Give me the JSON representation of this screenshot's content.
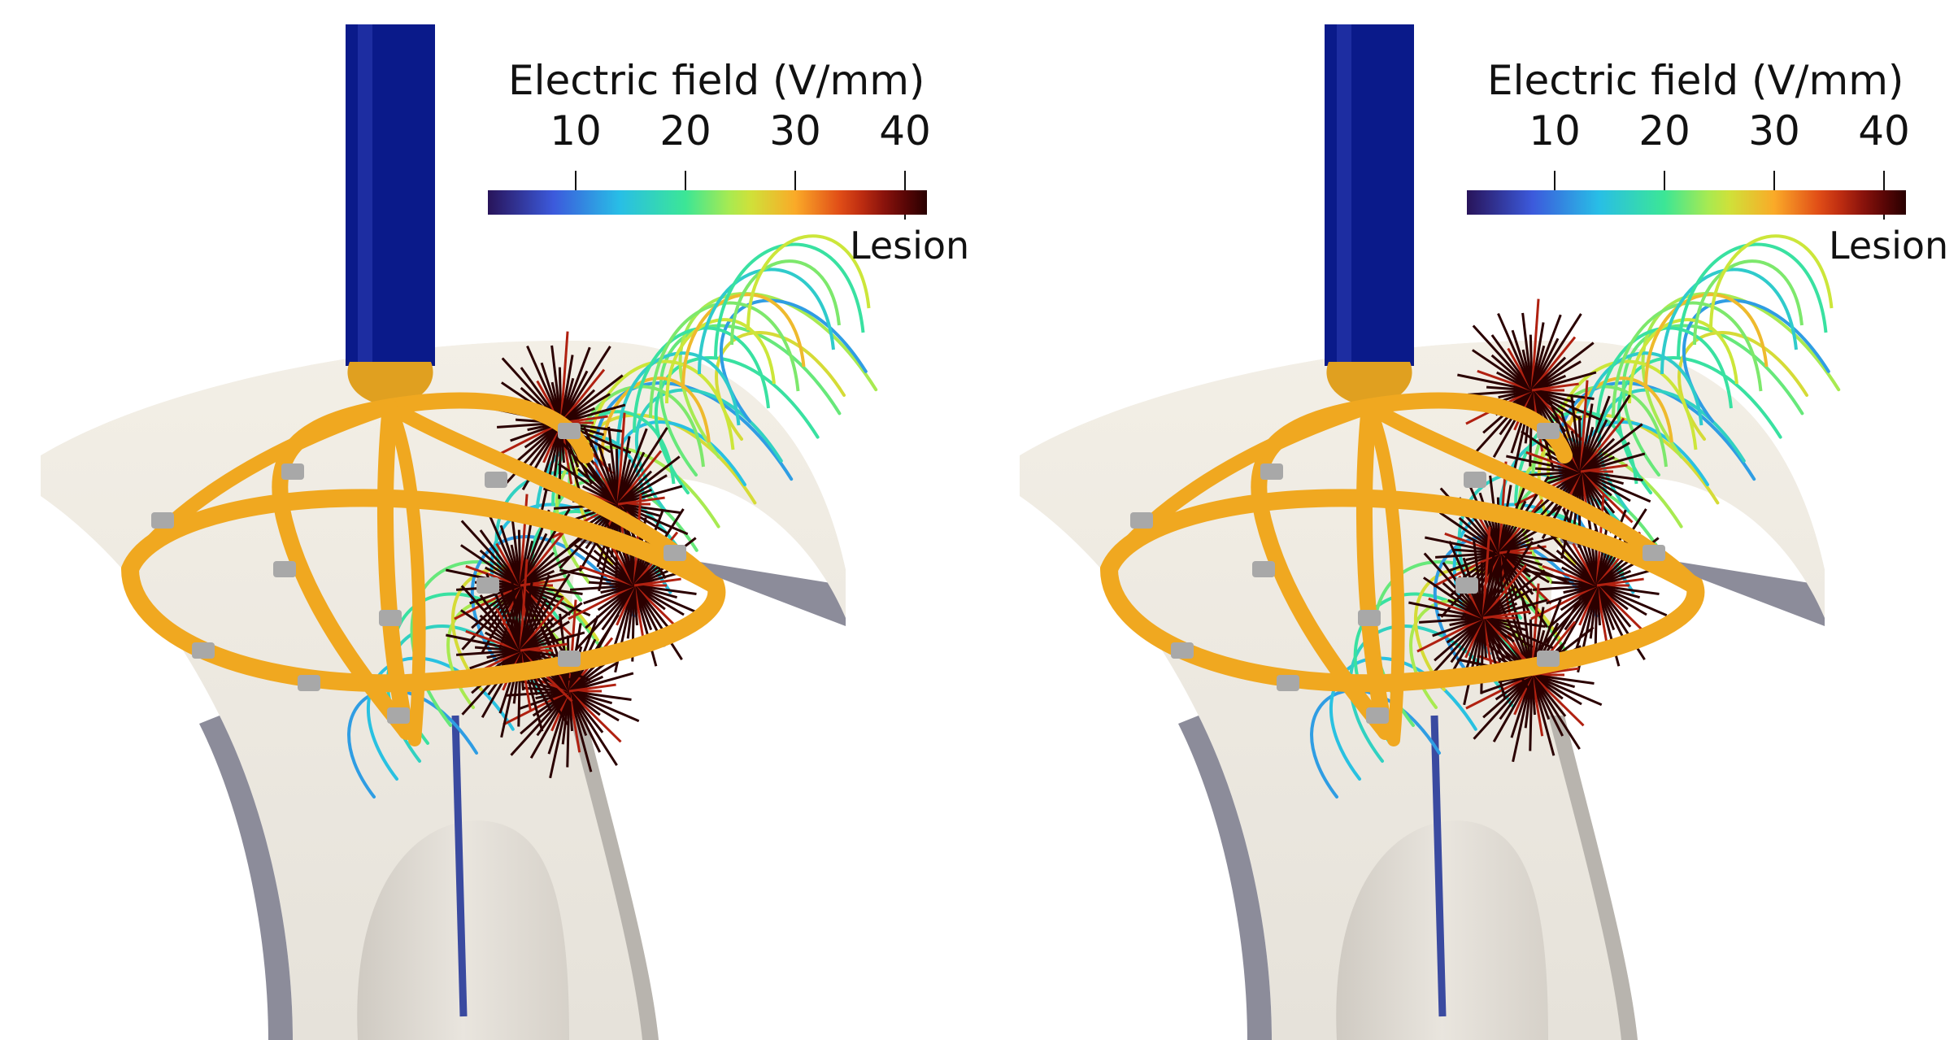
{
  "panels": [
    {
      "id": "left",
      "colorbar": {
        "title": "Electric field (V/mm)",
        "ticks": [
          "10",
          "20",
          "30",
          "40"
        ],
        "end_label": "Lesion"
      }
    },
    {
      "id": "right",
      "colorbar": {
        "title": "Electric field (V/mm)",
        "ticks": [
          "10",
          "20",
          "30",
          "40"
        ],
        "end_label": "Lesion"
      }
    }
  ],
  "colors": {
    "catheter_shaft": "#0a1a8a",
    "basket_splines": "#f0a820",
    "electrode_bands": "#a8a8a8",
    "tissue": "#f0ece4",
    "tissue_edge": "#8c8c9a",
    "lesion": "#2a0000",
    "guidewire": "#3a4aa0"
  }
}
